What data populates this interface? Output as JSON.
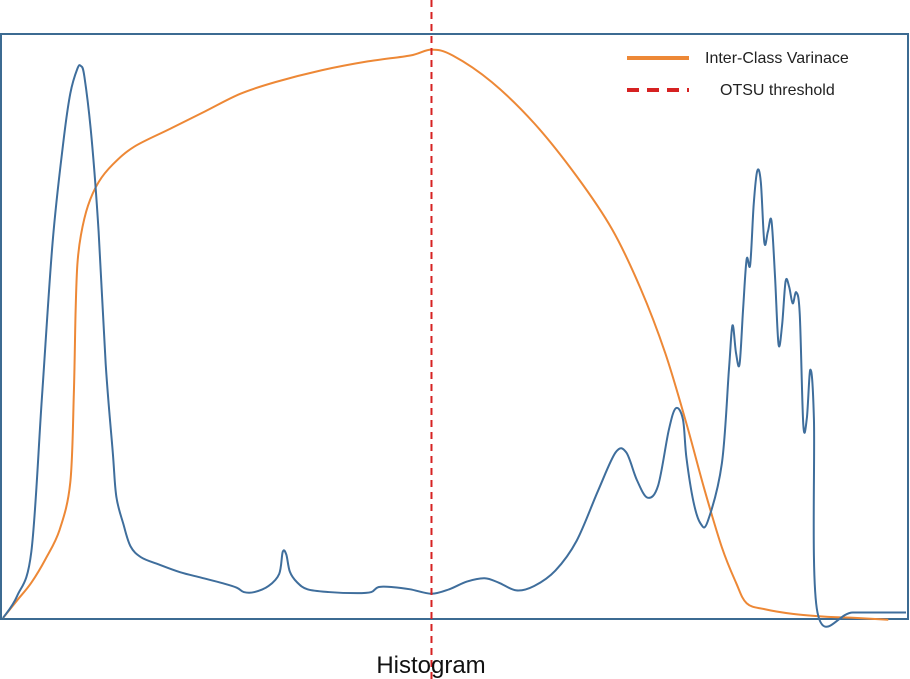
{
  "chart_data": {
    "type": "line",
    "title": "",
    "xlabel": "Histogram",
    "ylabel": "",
    "xlim": [
      0,
      255
    ],
    "grid": false,
    "legend_position": "top-right",
    "threshold": 121,
    "colors": {
      "histogram": "#3f6e9c",
      "variance": "#ed8836",
      "threshold": "#d62222",
      "frame": "#3c6b92"
    },
    "series": [
      {
        "key": "histogram",
        "values": [
          [
            0,
            0
          ],
          [
            4,
            0.04
          ],
          [
            8,
            0.12
          ],
          [
            11,
            0.4
          ],
          [
            14,
            0.68
          ],
          [
            17,
            0.86
          ],
          [
            19,
            0.95
          ],
          [
            21,
            0.995
          ],
          [
            22,
            1.0
          ],
          [
            23,
            0.98
          ],
          [
            25,
            0.87
          ],
          [
            27,
            0.7
          ],
          [
            29,
            0.46
          ],
          [
            31,
            0.3
          ],
          [
            32,
            0.22
          ],
          [
            34,
            0.17
          ],
          [
            36,
            0.13
          ],
          [
            39,
            0.11
          ],
          [
            44,
            0.097
          ],
          [
            50,
            0.083
          ],
          [
            56,
            0.073
          ],
          [
            62,
            0.063
          ],
          [
            66,
            0.055
          ],
          [
            68,
            0.047
          ],
          [
            71,
            0.047
          ],
          [
            75,
            0.058
          ],
          [
            78,
            0.08
          ],
          [
            79,
            0.12
          ],
          [
            80,
            0.115
          ],
          [
            81,
            0.084
          ],
          [
            83,
            0.065
          ],
          [
            86,
            0.052
          ],
          [
            92,
            0.047
          ],
          [
            100,
            0.045
          ],
          [
            104,
            0.047
          ],
          [
            106,
            0.056
          ],
          [
            110,
            0.056
          ],
          [
            115,
            0.052
          ],
          [
            121,
            0.044
          ],
          [
            126,
            0.052
          ],
          [
            131,
            0.066
          ],
          [
            136,
            0.072
          ],
          [
            140,
            0.064
          ],
          [
            145,
            0.05
          ],
          [
            150,
            0.058
          ],
          [
            156,
            0.086
          ],
          [
            162,
            0.14
          ],
          [
            168,
            0.23
          ],
          [
            173,
            0.3
          ],
          [
            176,
            0.3
          ],
          [
            179,
            0.25
          ],
          [
            182,
            0.218
          ],
          [
            185,
            0.24
          ],
          [
            188,
            0.34
          ],
          [
            190,
            0.38
          ],
          [
            192,
            0.36
          ],
          [
            193,
            0.29
          ],
          [
            195,
            0.21
          ],
          [
            197,
            0.171
          ],
          [
            199,
            0.175
          ],
          [
            203,
            0.28
          ],
          [
            205,
            0.45
          ],
          [
            206,
            0.53
          ],
          [
            207,
            0.48
          ],
          [
            208,
            0.46
          ],
          [
            209,
            0.56
          ],
          [
            210,
            0.65
          ],
          [
            211,
            0.64
          ],
          [
            212,
            0.75
          ],
          [
            213,
            0.81
          ],
          [
            214,
            0.79
          ],
          [
            215,
            0.68
          ],
          [
            216,
            0.7
          ],
          [
            217,
            0.72
          ],
          [
            218,
            0.62
          ],
          [
            219,
            0.496
          ],
          [
            220,
            0.53
          ],
          [
            221,
            0.61
          ],
          [
            222,
            0.6
          ],
          [
            223,
            0.57
          ],
          [
            224,
            0.59
          ],
          [
            225,
            0.55
          ],
          [
            226,
            0.35
          ],
          [
            227,
            0.362
          ],
          [
            228,
            0.45
          ],
          [
            229,
            0.36
          ],
          [
            230,
            0.01
          ],
          [
            240,
            0.01
          ],
          [
            257,
            0.01
          ]
        ]
      },
      {
        "key": "variance",
        "name": "Inter-Class Varinace",
        "values": [
          [
            0,
            0
          ],
          [
            4,
            0.03
          ],
          [
            8,
            0.06
          ],
          [
            12,
            0.1
          ],
          [
            16,
            0.15
          ],
          [
            19,
            0.23
          ],
          [
            20,
            0.38
          ],
          [
            20.5,
            0.52
          ],
          [
            21,
            0.6
          ],
          [
            22,
            0.65
          ],
          [
            24,
            0.7
          ],
          [
            27,
            0.74
          ],
          [
            31,
            0.77
          ],
          [
            37,
            0.8
          ],
          [
            47,
            0.83
          ],
          [
            57,
            0.86
          ],
          [
            67,
            0.89
          ],
          [
            77,
            0.91
          ],
          [
            90,
            0.93
          ],
          [
            103,
            0.945
          ],
          [
            115,
            0.955
          ],
          [
            121,
            0.965
          ],
          [
            127,
            0.955
          ],
          [
            138,
            0.91
          ],
          [
            150,
            0.84
          ],
          [
            162,
            0.75
          ],
          [
            172,
            0.66
          ],
          [
            180,
            0.56
          ],
          [
            187,
            0.45
          ],
          [
            193,
            0.33
          ],
          [
            198,
            0.22
          ],
          [
            203,
            0.12
          ],
          [
            207,
            0.06
          ],
          [
            210,
            0.025
          ],
          [
            215,
            0.015
          ],
          [
            223,
            0.007
          ],
          [
            233,
            0.002
          ],
          [
            240,
            0.0005
          ],
          [
            250,
            -0.003
          ]
        ]
      }
    ],
    "legend": [
      {
        "key": "variance",
        "label": "Inter-Class Varinace",
        "style": "solid"
      },
      {
        "key": "threshold",
        "label": "OTSU threshold",
        "style": "dashed"
      }
    ]
  }
}
